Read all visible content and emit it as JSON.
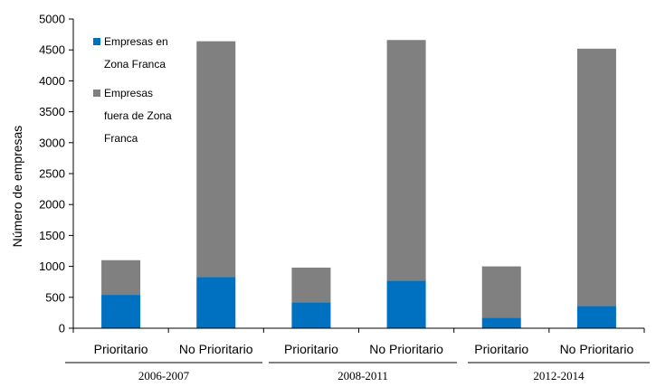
{
  "chart_data": {
    "type": "bar",
    "stacked": true,
    "ylabel": "Número de empresas",
    "xlabel": "",
    "ylim": [
      0,
      5000
    ],
    "yticks": [
      0,
      500,
      1000,
      1500,
      2000,
      2500,
      3000,
      3500,
      4000,
      4500,
      5000
    ],
    "grid": false,
    "legend_position": "top-left",
    "categories": [
      "Prioritario",
      "No Prioritario",
      "Prioritario",
      "No Prioritario",
      "Prioritario",
      "No Prioritario"
    ],
    "groups": [
      {
        "label": "2006-2007",
        "categories": [
          0,
          1
        ]
      },
      {
        "label": "2008-2011",
        "categories": [
          2,
          3
        ]
      },
      {
        "label": "2012-2014",
        "categories": [
          4,
          5
        ]
      }
    ],
    "series": [
      {
        "name": "Empresas en Zona Franca",
        "color": "#0070C0",
        "values": [
          540,
          830,
          420,
          770,
          170,
          360
        ]
      },
      {
        "name": "Empresas fuera de Zona Franca",
        "color": "#808080",
        "values": [
          560,
          3810,
          560,
          3890,
          830,
          4160
        ]
      }
    ]
  }
}
